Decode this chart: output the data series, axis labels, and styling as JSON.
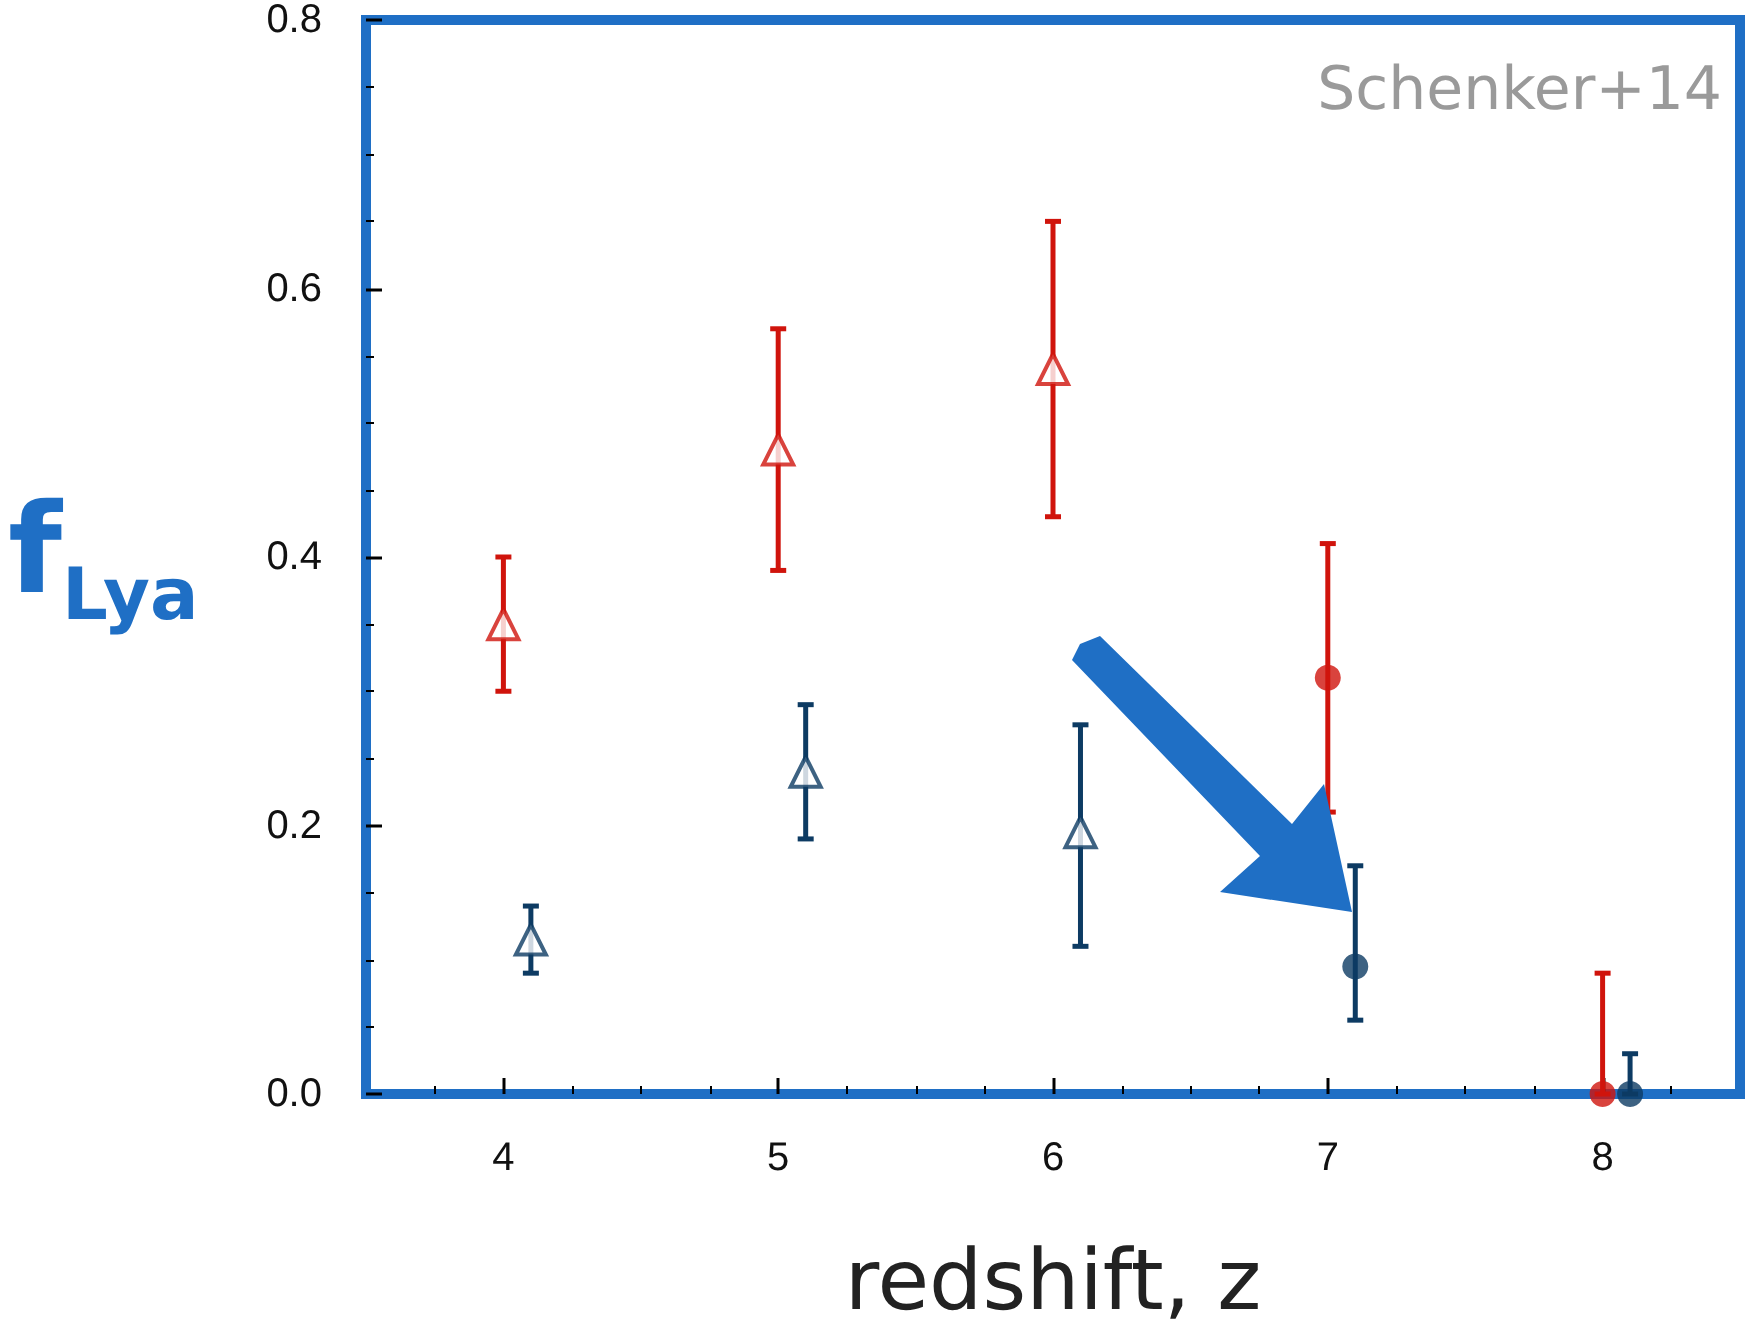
{
  "chart_data": {
    "type": "scatter",
    "xlabel": "redshift, z",
    "ylabel": "f$_{Lya}$",
    "annotations": [
      "Schenker+14"
    ],
    "xlim": [
      3.5,
      8.5
    ],
    "xticks": [
      4,
      5,
      6,
      7,
      8
    ],
    "ylim": [
      0,
      0.8
    ],
    "yticks": [
      {
        "value": 0,
        "label": "0.0"
      },
      {
        "value": 0.2,
        "label": "0.2"
      },
      {
        "value": 0.4,
        "label": "0.4"
      },
      {
        "value": 0.6,
        "label": "0.6"
      },
      {
        "value": 0.8,
        "label": "0.8"
      }
    ],
    "grid": false,
    "series": [
      {
        "color": "#d0140c",
        "marker": "triangle",
        "x": [
          4,
          5,
          6
        ],
        "values": [
          0.35,
          0.48,
          0.54
        ],
        "errors": [
          [
            0.3,
            0.4
          ],
          [
            0.39,
            0.57
          ],
          [
            0.43,
            0.65
          ]
        ]
      },
      {
        "color": "#d0140c",
        "marker": "circle",
        "x": [
          7,
          8
        ],
        "values": [
          0.31,
          0
        ],
        "errors": [
          [
            0.21,
            0.41
          ],
          [
            0,
            0.09
          ]
        ]
      },
      {
        "color": "#0d3b63",
        "marker": "triangle",
        "x": [
          4.1,
          5.1,
          6.1
        ],
        "values": [
          0.115,
          0.24,
          0.195
        ],
        "errors": [
          [
            0.09,
            0.14
          ],
          [
            0.19,
            0.29
          ],
          [
            0.11,
            0.275
          ]
        ]
      },
      {
        "color": "#0d3b63",
        "marker": "circle",
        "x": [
          7.1,
          8.1
        ],
        "values": [
          0.095,
          0
        ],
        "errors": [
          [
            0.055,
            0.17
          ],
          [
            0,
            0.03
          ]
        ]
      }
    ]
  }
}
